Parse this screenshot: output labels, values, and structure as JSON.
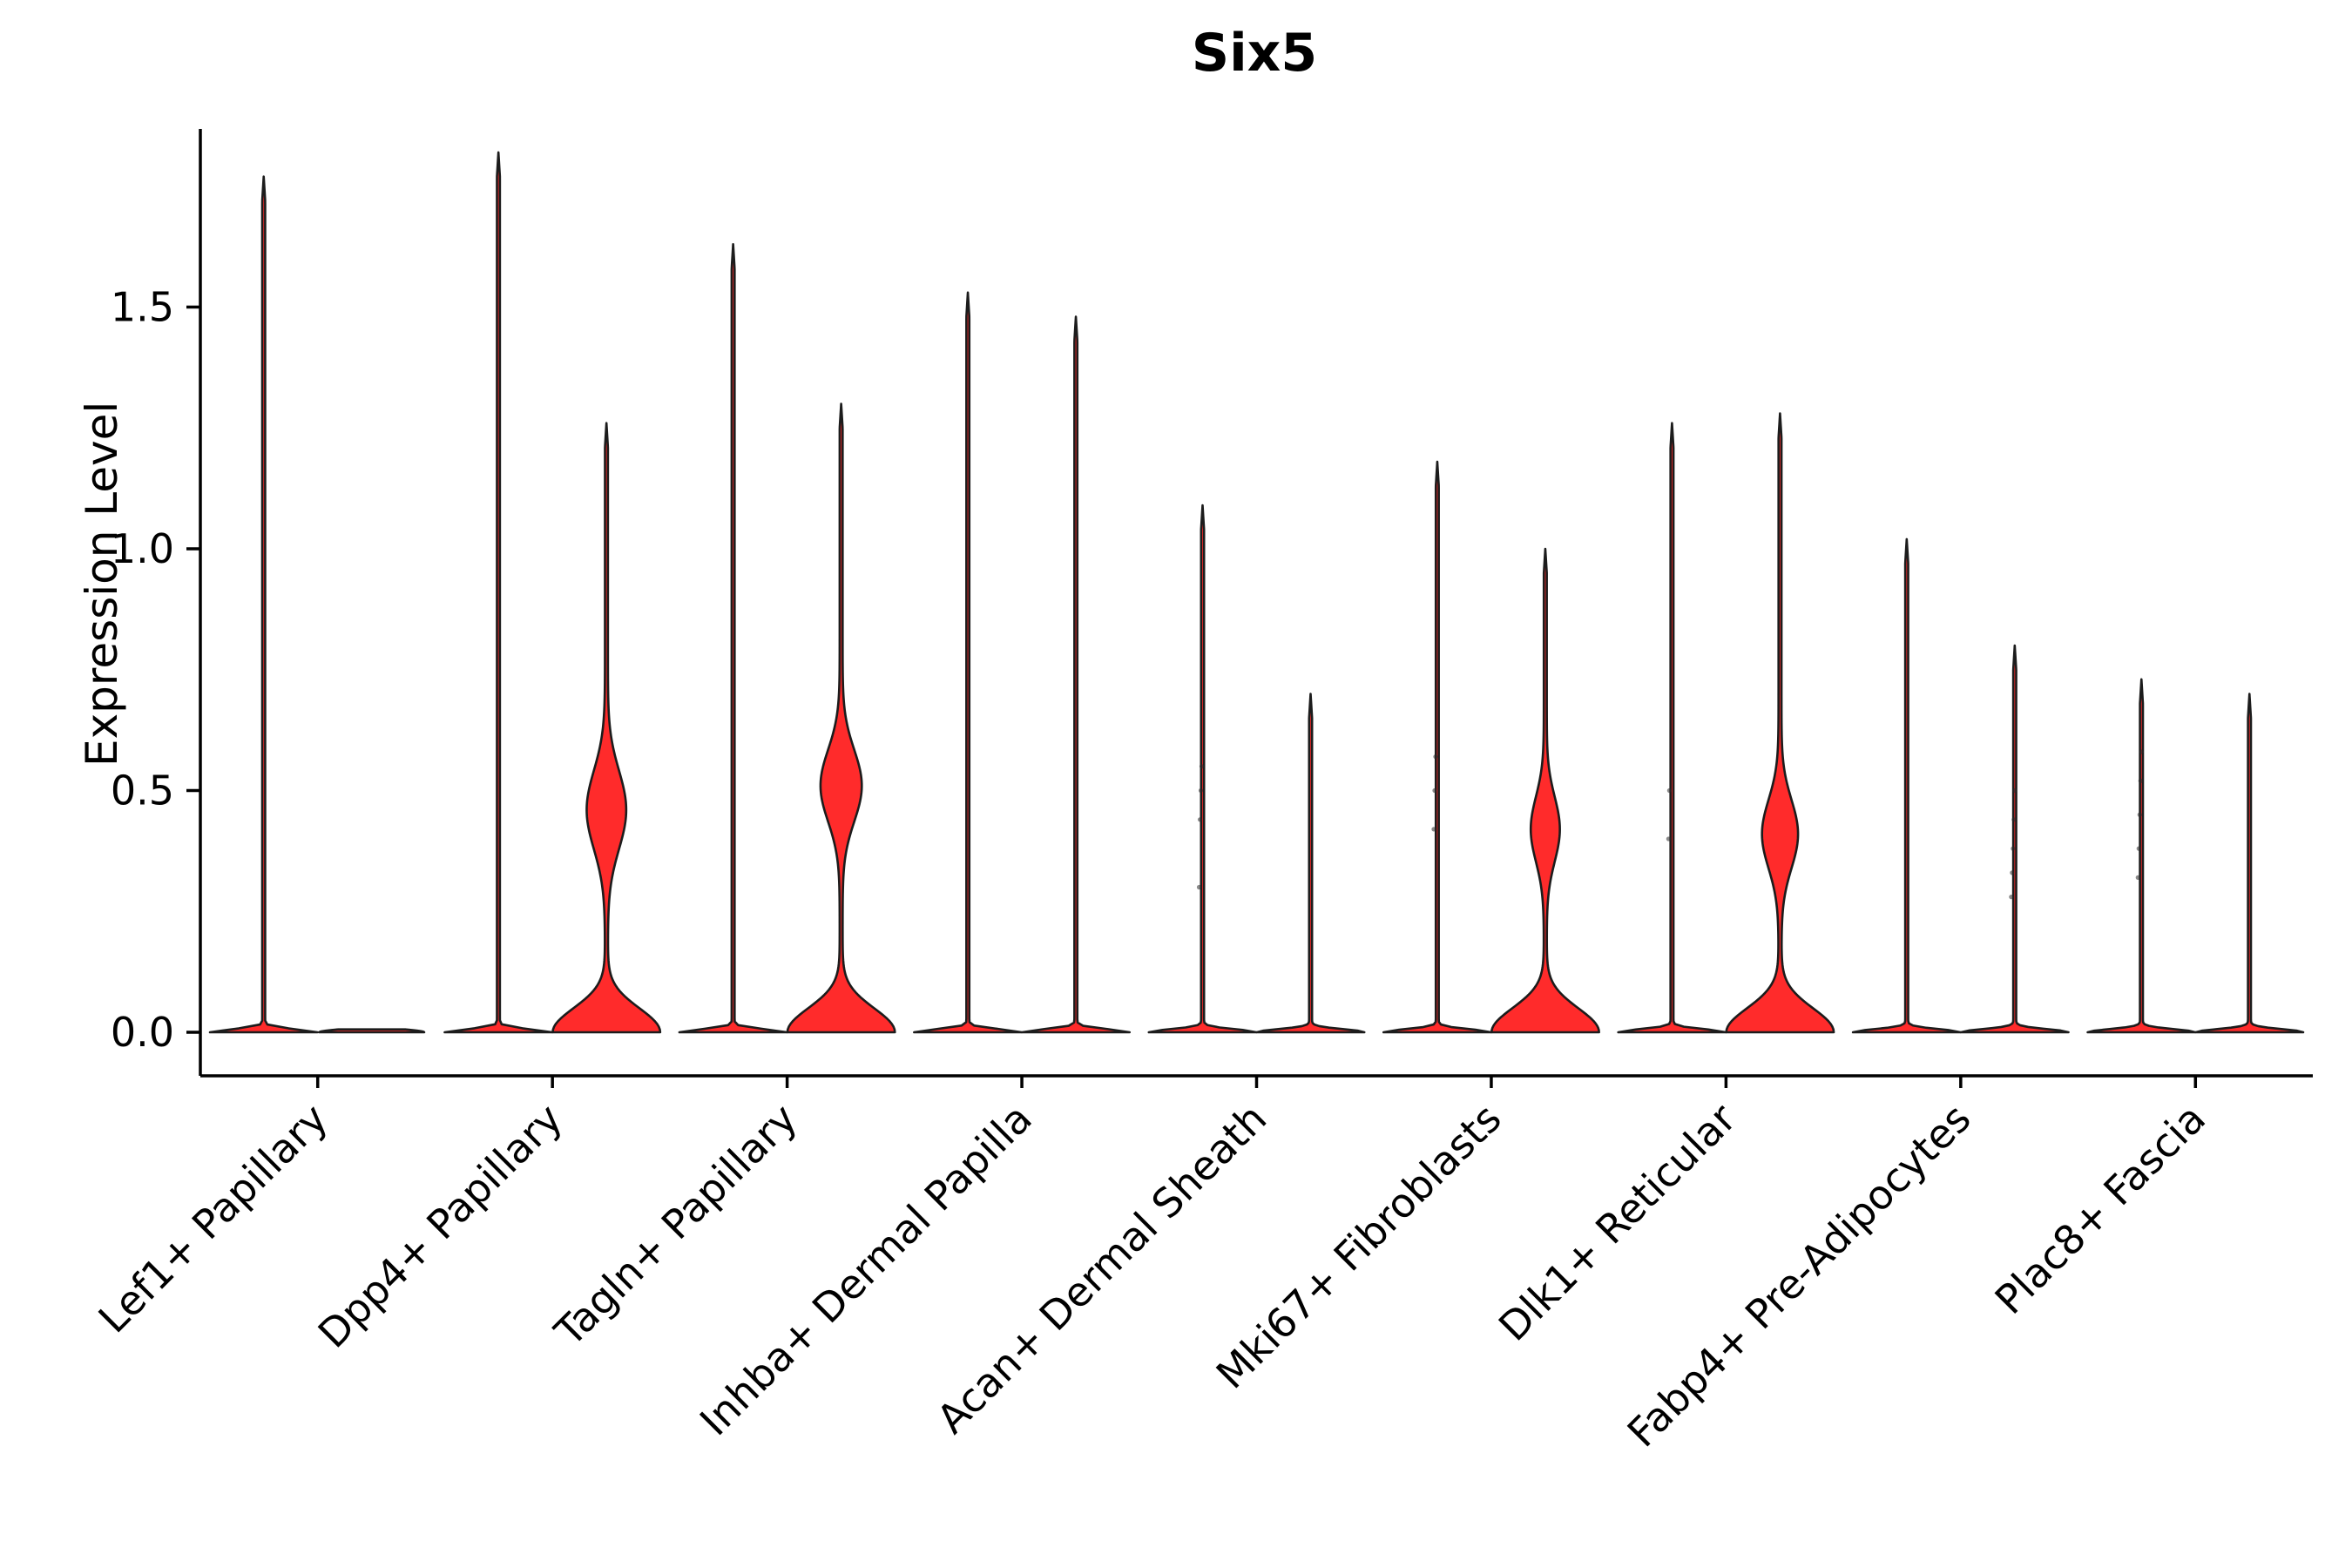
{
  "chart_data": {
    "type": "violin",
    "title": "Six5",
    "ylabel": "Expression Level",
    "xlabel": "",
    "ylim": [
      -0.09,
      1.87
    ],
    "yticks": [
      "0.0",
      "0.5",
      "1.0",
      "1.5"
    ],
    "ytick_values": [
      0,
      0.5,
      1,
      1.5
    ],
    "violins_per_category": 2,
    "fill_color": "#ff2b2b",
    "outline_color": "#1c1c1c",
    "legend": "none",
    "grid": "off",
    "categories": [
      "Lef1+ Papillary",
      "Dpp4+ Papillary",
      "Tagln+ Papillary",
      "Inhba+ Dermal Papilla",
      "Acan+ Dermal Sheath",
      "Mki67+ Fibroblasts",
      "Dlk1+ Reticular",
      "Fabp4+ Pre-Adipocytes",
      "Plac8+ Fascia"
    ],
    "violins": [
      [
        {
          "max": 1.77,
          "body": null,
          "dots": []
        },
        {
          "max": 0.006,
          "body": null,
          "dots": []
        }
      ],
      [
        {
          "max": 1.82,
          "body": null,
          "dots": []
        },
        {
          "max": 1.26,
          "body": {
            "center": 0.46,
            "sd": 0.115,
            "halfwidth": 21
          },
          "dots": []
        }
      ],
      [
        {
          "max": 1.63,
          "body": null,
          "dots": []
        },
        {
          "max": 1.3,
          "body": {
            "center": 0.51,
            "sd": 0.105,
            "halfwidth": 22
          },
          "dots": []
        }
      ],
      [
        {
          "max": 1.53,
          "body": null,
          "dots": []
        },
        {
          "max": 1.48,
          "body": null,
          "dots": []
        }
      ],
      [
        {
          "max": 1.09,
          "body": null,
          "dots": [
            0.3,
            0.44,
            0.5,
            0.55
          ]
        },
        {
          "max": 0.7,
          "body": null,
          "dots": []
        }
      ],
      [
        {
          "max": 1.18,
          "body": null,
          "dots": [
            0.42,
            0.5,
            0.57
          ]
        },
        {
          "max": 1.0,
          "body": {
            "center": 0.42,
            "sd": 0.095,
            "halfwidth": 15
          },
          "dots": []
        }
      ],
      [
        {
          "max": 1.26,
          "body": null,
          "dots": [
            0.4,
            0.5
          ]
        },
        {
          "max": 1.28,
          "body": {
            "center": 0.41,
            "sd": 0.1,
            "halfwidth": 19
          },
          "dots": []
        }
      ],
      [
        {
          "max": 1.02,
          "body": null,
          "dots": []
        },
        {
          "max": 0.8,
          "body": null,
          "dots": [
            0.28,
            0.33,
            0.38,
            0.44,
            0.5
          ]
        }
      ],
      [
        {
          "max": 0.73,
          "body": null,
          "dots": [
            0.32,
            0.38,
            0.45,
            0.52,
            0.58
          ]
        },
        {
          "max": 0.7,
          "body": null,
          "dots": []
        }
      ]
    ]
  }
}
